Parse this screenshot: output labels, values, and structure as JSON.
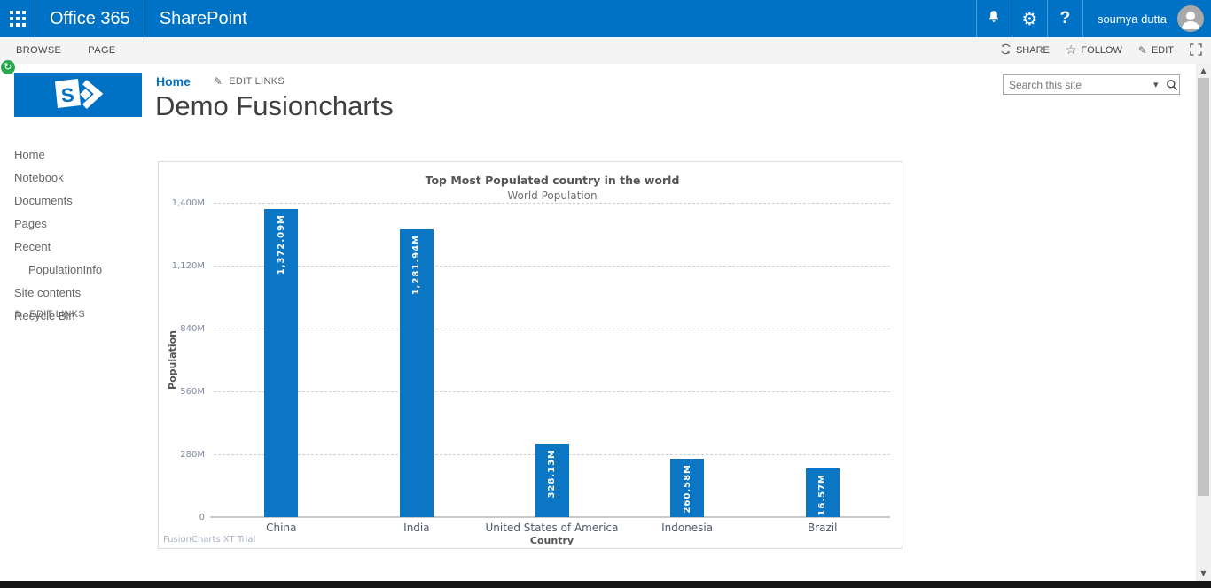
{
  "suite_bar": {
    "brand": "Office 365",
    "app": "SharePoint",
    "user_name": "soumya dutta",
    "help_label": "?"
  },
  "ribbon": {
    "tabs": [
      "BROWSE",
      "PAGE"
    ],
    "share_label": "SHARE",
    "follow_label": "FOLLOW",
    "edit_label": "EDIT"
  },
  "sidebar": {
    "items": [
      {
        "label": "Home",
        "indent": false
      },
      {
        "label": "Notebook",
        "indent": false
      },
      {
        "label": "Documents",
        "indent": false
      },
      {
        "label": "Pages",
        "indent": false
      },
      {
        "label": "Recent",
        "indent": false
      },
      {
        "label": "PopulationInfo",
        "indent": true
      },
      {
        "label": "Site contents",
        "indent": false
      },
      {
        "label": "Recycle Bin",
        "indent": false
      }
    ],
    "edit_links_label": "EDIT LINKS"
  },
  "breadcrumb": {
    "home_label": "Home",
    "edit_links_label": "EDIT LINKS"
  },
  "page": {
    "title": "Demo Fusioncharts"
  },
  "search": {
    "placeholder": "Search this site"
  },
  "chart_data": {
    "type": "bar",
    "title": "Top Most Populated country in the world",
    "subtitle": "World Population",
    "xlabel": "Country",
    "ylabel": "Population",
    "categories": [
      "China",
      "India",
      "United States of America",
      "Indonesia",
      "Brazil"
    ],
    "values": [
      1372.09,
      1281.94,
      328.13,
      260.58,
      216.57
    ],
    "value_labels": [
      "1,372.09M",
      "1,281.94M",
      "328.13M",
      "260.58M",
      "216.57M"
    ],
    "ylim": [
      0,
      1400
    ],
    "yticks": [
      {
        "value": 0,
        "label": "0"
      },
      {
        "value": 280,
        "label": "280M"
      },
      {
        "value": 560,
        "label": "560M"
      },
      {
        "value": 840,
        "label": "840M"
      },
      {
        "value": 1120,
        "label": "1,120M"
      },
      {
        "value": 1400,
        "label": "1,400M"
      }
    ],
    "grid": "horizontal-dashed",
    "legend_position": "none",
    "bar_color": "#0a76c4",
    "watermark": "FusionCharts XT Trial"
  },
  "colors": {
    "suite_bar_blue": "#0072c6",
    "ribbon_bg": "#f4f4f4",
    "link_blue": "#0072c6",
    "bar_blue": "#0a76c4",
    "badge_green": "#28a74e",
    "bottom_bar": "#141414"
  }
}
